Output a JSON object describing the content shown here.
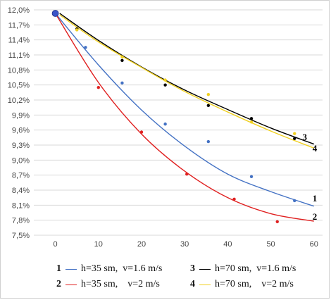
{
  "chart_data": {
    "type": "scatter",
    "x_ticks": [
      "0",
      "10",
      "20",
      "30",
      "40",
      "50",
      "60"
    ],
    "y_ticks": [
      "7,5%",
      "7,8%",
      "8,1%",
      "8,4%",
      "8,7%",
      "9,0%",
      "9,3%",
      "9,6%",
      "9,9%",
      "10,2%",
      "10,5%",
      "10,8%",
      "11,1%",
      "11,4%",
      "11,7%",
      "12,0%"
    ],
    "xlim": [
      -5,
      62
    ],
    "ylim": [
      7.5,
      12.0
    ],
    "grid": true,
    "start_point": {
      "x": 0,
      "y": 11.93
    },
    "series": [
      {
        "id": "1",
        "curve_label": "1",
        "color": "#4472c4",
        "points": [
          [
            0,
            11.93
          ],
          [
            7,
            11.25
          ],
          [
            15.5,
            10.54
          ],
          [
            25.5,
            9.72
          ],
          [
            35.5,
            9.37
          ],
          [
            45.5,
            8.67
          ],
          [
            55.5,
            8.19
          ]
        ],
        "curve": [
          [
            0,
            11.93
          ],
          [
            10,
            10.9
          ],
          [
            20,
            10.0
          ],
          [
            30,
            9.28
          ],
          [
            40,
            8.72
          ],
          [
            50,
            8.37
          ],
          [
            60,
            8.08
          ]
        ]
      },
      {
        "id": "2",
        "curve_label": "2",
        "color": "#e02020",
        "points": [
          [
            0,
            11.93
          ],
          [
            10,
            10.45
          ],
          [
            20,
            9.56
          ],
          [
            30.5,
            8.72
          ],
          [
            41.5,
            8.22
          ],
          [
            51.5,
            7.77
          ]
        ],
        "curve": [
          [
            0,
            11.93
          ],
          [
            10,
            10.55
          ],
          [
            20,
            9.52
          ],
          [
            30,
            8.78
          ],
          [
            40,
            8.25
          ],
          [
            50,
            7.93
          ],
          [
            60,
            7.78
          ]
        ]
      },
      {
        "id": "3",
        "curve_label": "3",
        "color": "#000000",
        "points": [
          [
            5,
            11.62
          ],
          [
            15.5,
            10.99
          ],
          [
            25.5,
            10.5
          ],
          [
            35.5,
            10.09
          ],
          [
            45.5,
            9.83
          ],
          [
            55.5,
            9.43
          ]
        ],
        "curve": [
          [
            1,
            11.93
          ],
          [
            10,
            11.39
          ],
          [
            20,
            10.86
          ],
          [
            30,
            10.4
          ],
          [
            40,
            10.01
          ],
          [
            50,
            9.64
          ],
          [
            60,
            9.32
          ]
        ]
      },
      {
        "id": "4",
        "curve_label": "4",
        "color": "#f0d020",
        "points": [
          [
            5,
            11.6
          ],
          [
            15.5,
            11.06
          ],
          [
            25.5,
            10.6
          ],
          [
            35.5,
            10.31
          ],
          [
            45.5,
            9.76
          ],
          [
            55.5,
            9.53
          ]
        ],
        "curve": [
          [
            1,
            11.9
          ],
          [
            10,
            11.36
          ],
          [
            20,
            10.85
          ],
          [
            30,
            10.37
          ],
          [
            40,
            9.96
          ],
          [
            50,
            9.58
          ],
          [
            60,
            9.24
          ]
        ]
      }
    ]
  },
  "legend": {
    "items": [
      {
        "num": "1",
        "color": "#4472c4",
        "text": "h=35 sm,  v=1.6 m/s"
      },
      {
        "num": "2",
        "color": "#e02020",
        "text": "h=35 sm,    v=2 m/s"
      },
      {
        "num": "3",
        "color": "#000000",
        "text": "h=70 sm,  v=1.6 m/s"
      },
      {
        "num": "4",
        "color": "#f0d020",
        "text": "h=70 sm,    v=2 m/s"
      }
    ]
  }
}
